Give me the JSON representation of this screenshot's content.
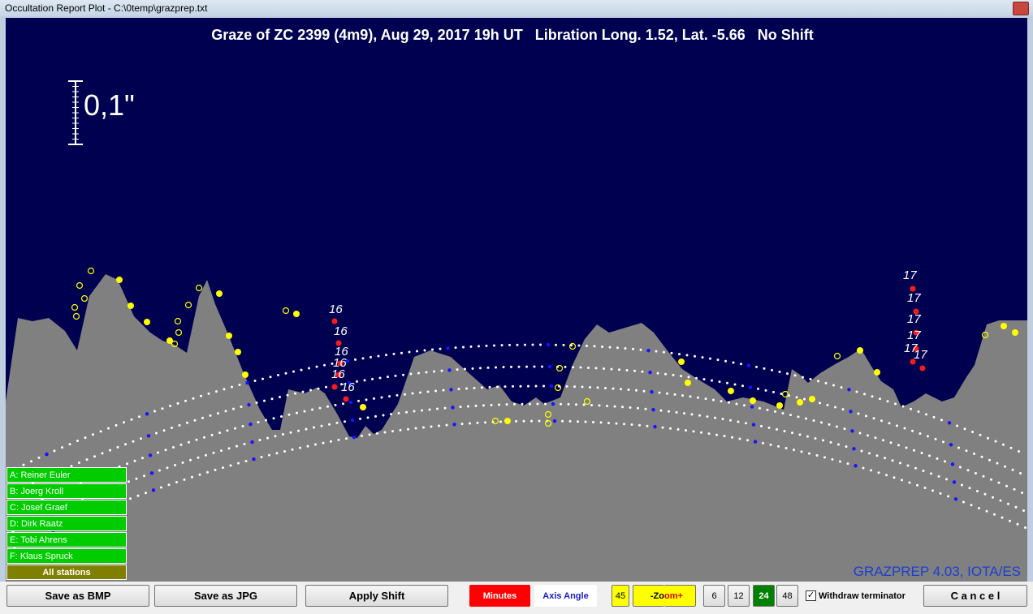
{
  "window": {
    "title": "Occultation Report Plot - C:\\0temp\\grazprep.txt"
  },
  "plot": {
    "title": "Graze of ZC 2399 (4m9), Aug 29, 2017 19h UT   Libration Long. 1.52, Lat. -5.66   No Shift",
    "scale_label": "0,1\"",
    "minute_labels": [
      "16",
      "16",
      "16",
      "16",
      "16",
      "16",
      "17",
      "17",
      "17",
      "17",
      "17",
      "17"
    ],
    "credit": "GRAZPREP 4.03, IOTA/ES"
  },
  "stations": [
    "A: Reiner Euler",
    "B: Joerg Kroll",
    "C: Josef Graef",
    "D: Dirk Raatz",
    "E: Tobi Ahrens",
    "F: Klaus Spruck"
  ],
  "all_stations": "All stations",
  "toolbar": {
    "save_bmp": "Save as BMP",
    "save_jpg": "Save as JPG",
    "apply_shift": "Apply Shift",
    "minutes": "Minutes",
    "axis_angle": "Axis Angle",
    "step": "45",
    "zoom_minus": "-Zo",
    "zoom_plus": "om+",
    "scales": [
      "6",
      "12",
      "24",
      "48"
    ],
    "withdraw_terminator": "Withdraw terminator",
    "cancel": "C a n c e l"
  }
}
